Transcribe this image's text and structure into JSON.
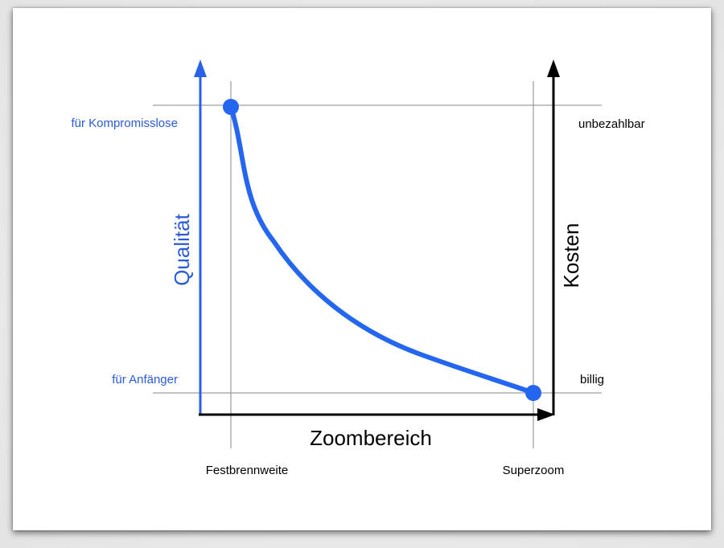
{
  "diagram": {
    "left_axis": {
      "title": "Qualität",
      "top_label": "für Kompromisslose",
      "bottom_label": "für Anfänger",
      "color": "#2962e8"
    },
    "right_axis": {
      "title": "Kosten",
      "top_label": "unbezahlbar",
      "bottom_label": "billig",
      "color": "#000000"
    },
    "bottom_axis": {
      "title": "Zoombereich",
      "left_label": "Festbrennweite",
      "right_label": "Superzoom"
    },
    "curve": {
      "color": "#2466f0",
      "description_points": [
        "Festbrennweite / für Kompromisslose",
        "Superzoom / billig"
      ]
    }
  }
}
